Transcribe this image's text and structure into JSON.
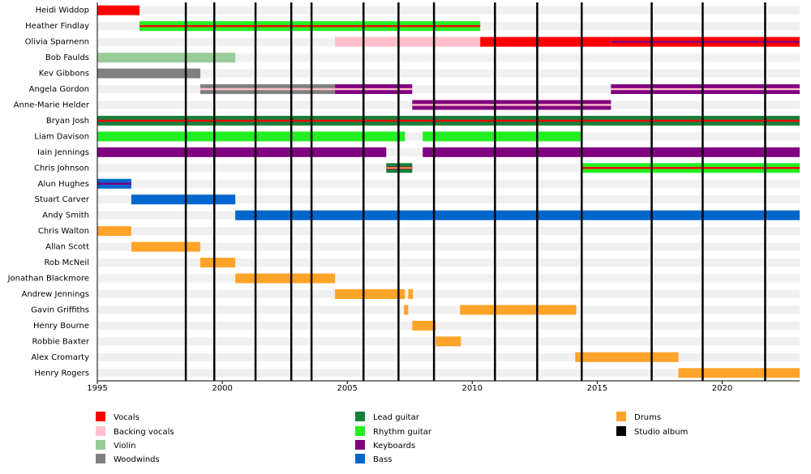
{
  "chart_data": {
    "type": "timeline",
    "xlim": [
      1995,
      2023.1
    ],
    "xticks": [
      1995,
      2000,
      2005,
      2010,
      2015,
      2020
    ],
    "legend": [
      {
        "name": "Vocals",
        "color": "#ff0000"
      },
      {
        "name": "Backing vocals",
        "color": "#ffc0cb"
      },
      {
        "name": "Violin",
        "color": "#99cc99"
      },
      {
        "name": "Woodwinds",
        "color": "#808080"
      },
      {
        "name": "Lead guitar",
        "color": "#16803a"
      },
      {
        "name": "Rhythm guitar",
        "color": "#22ee22"
      },
      {
        "name": "Keyboards",
        "color": "#800080"
      },
      {
        "name": "Bass",
        "color": "#0066cc"
      },
      {
        "name": "Drums",
        "color": "#ffa329"
      },
      {
        "name": "Studio album",
        "color": "#000000"
      }
    ],
    "albums": [
      1998.54,
      1999.68,
      2001.33,
      2002.76,
      2003.57,
      2005.65,
      2007.05,
      2008.47,
      2010.91,
      2012.6,
      2014.38,
      2017.18,
      2019.22,
      2021.72
    ],
    "members": [
      {
        "name": "Heidi Widdop",
        "periods": [
          {
            "start": 1995,
            "end": 1996.69,
            "roles": [
              "Vocals"
            ]
          }
        ]
      },
      {
        "name": "Heather Findlay",
        "periods": [
          {
            "start": 1996.69,
            "end": 2010.32,
            "roles": [
              "Rhythm guitar",
              "Vocals"
            ]
          }
        ]
      },
      {
        "name": "Olivia Sparnenn",
        "periods": [
          {
            "start": 2004.51,
            "end": 2010.32,
            "roles": [
              "Backing vocals"
            ]
          },
          {
            "start": 2010.32,
            "end": 2015.55,
            "roles": [
              "Vocals"
            ]
          },
          {
            "start": 2015.55,
            "end": 2023.1,
            "roles": [
              "Vocals",
              "Keyboards"
            ]
          }
        ]
      },
      {
        "name": "Bob Faulds",
        "periods": [
          {
            "start": 1995,
            "end": 2000.52,
            "roles": [
              "Violin"
            ]
          }
        ]
      },
      {
        "name": "Kev Gibbons",
        "periods": [
          {
            "start": 1995,
            "end": 1999.12,
            "roles": [
              "Woodwinds"
            ]
          }
        ]
      },
      {
        "name": "Angela Gordon",
        "periods": [
          {
            "start": 1999.12,
            "end": 2004.51,
            "roles": [
              "Woodwinds",
              "Backing vocals"
            ]
          },
          {
            "start": 2004.51,
            "end": 2007.6,
            "roles": [
              "Keyboards",
              "Backing vocals"
            ]
          },
          {
            "start": 2015.55,
            "end": 2023.1,
            "roles": [
              "Keyboards",
              "Backing vocals"
            ]
          }
        ]
      },
      {
        "name": "Anne-Marie Helder",
        "periods": [
          {
            "start": 2007.6,
            "end": 2015.55,
            "roles": [
              "Keyboards",
              "Backing vocals"
            ]
          }
        ]
      },
      {
        "name": "Bryan Josh",
        "periods": [
          {
            "start": 1995,
            "end": 2023.1,
            "roles": [
              "Lead guitar",
              "Vocals"
            ]
          }
        ]
      },
      {
        "name": "Liam Davison",
        "periods": [
          {
            "start": 1995,
            "end": 2007.31,
            "roles": [
              "Rhythm guitar"
            ]
          },
          {
            "start": 2008.02,
            "end": 2014.38,
            "roles": [
              "Rhythm guitar"
            ]
          }
        ]
      },
      {
        "name": "Iain Jennings",
        "periods": [
          {
            "start": 1995,
            "end": 2006.56,
            "roles": [
              "Keyboards"
            ]
          },
          {
            "start": 2008.02,
            "end": 2023.1,
            "roles": [
              "Keyboards"
            ]
          }
        ]
      },
      {
        "name": "Chris Johnson",
        "periods": [
          {
            "start": 2006.56,
            "end": 2007.6,
            "roles": [
              "Lead guitar",
              "Keyboards",
              "Drums"
            ]
          },
          {
            "start": 2014.38,
            "end": 2023.1,
            "roles": [
              "Rhythm guitar",
              "Vocals"
            ]
          }
        ]
      },
      {
        "name": "Alun Hughes",
        "periods": [
          {
            "start": 1995,
            "end": 1996.36,
            "roles": [
              "Bass",
              "Keyboards"
            ]
          }
        ]
      },
      {
        "name": "Stuart Carver",
        "periods": [
          {
            "start": 1996.36,
            "end": 2000.52,
            "roles": [
              "Bass"
            ]
          }
        ]
      },
      {
        "name": "Andy Smith",
        "periods": [
          {
            "start": 2000.52,
            "end": 2023.1,
            "roles": [
              "Bass"
            ]
          }
        ]
      },
      {
        "name": "Chris Walton",
        "periods": [
          {
            "start": 1995,
            "end": 1996.36,
            "roles": [
              "Drums"
            ]
          }
        ]
      },
      {
        "name": "Allan Scott",
        "periods": [
          {
            "start": 1996.36,
            "end": 1999.12,
            "roles": [
              "Drums"
            ]
          }
        ]
      },
      {
        "name": "Rob McNeil",
        "periods": [
          {
            "start": 1999.12,
            "end": 2000.52,
            "roles": [
              "Drums"
            ]
          }
        ]
      },
      {
        "name": "Jonathan Blackmore",
        "periods": [
          {
            "start": 2000.52,
            "end": 2004.51,
            "roles": [
              "Drums"
            ]
          }
        ]
      },
      {
        "name": "Andrew Jennings",
        "periods": [
          {
            "start": 2004.51,
            "end": 2007.31,
            "roles": [
              "Drums"
            ]
          },
          {
            "start": 2007.44,
            "end": 2007.63,
            "roles": [
              "Drums"
            ]
          }
        ]
      },
      {
        "name": "Gavin Griffiths",
        "periods": [
          {
            "start": 2007.27,
            "end": 2007.44,
            "roles": [
              "Drums"
            ]
          },
          {
            "start": 2009.51,
            "end": 2014.16,
            "roles": [
              "Drums"
            ]
          }
        ]
      },
      {
        "name": "Henry Bourne",
        "periods": [
          {
            "start": 2007.6,
            "end": 2008.54,
            "roles": [
              "Drums"
            ]
          }
        ]
      },
      {
        "name": "Robbie Baxter",
        "periods": [
          {
            "start": 2008.54,
            "end": 2009.55,
            "roles": [
              "Drums"
            ]
          }
        ]
      },
      {
        "name": "Alex Cromarty",
        "periods": [
          {
            "start": 2014.12,
            "end": 2018.25,
            "roles": [
              "Drums"
            ]
          }
        ]
      },
      {
        "name": "Henry Rogers",
        "periods": [
          {
            "start": 2018.25,
            "end": 2023.1,
            "roles": [
              "Drums"
            ]
          }
        ]
      }
    ]
  }
}
